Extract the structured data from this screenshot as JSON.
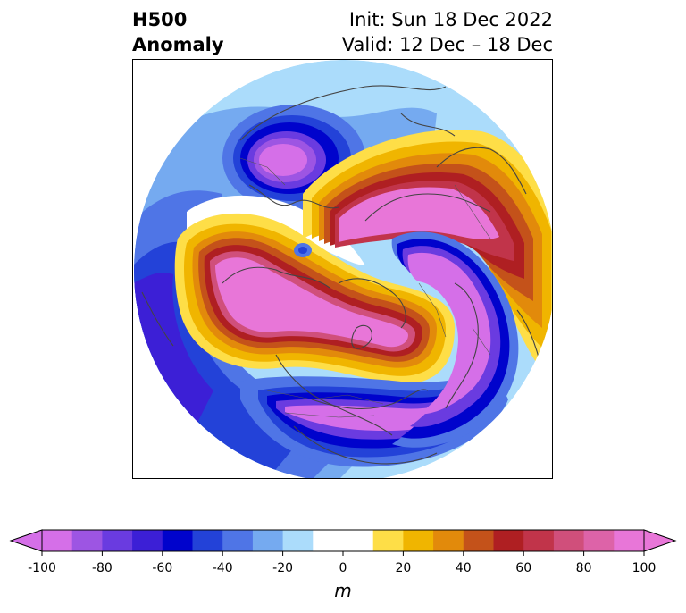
{
  "title": {
    "left_line1": "H500",
    "left_line2": "Anomaly",
    "right_line1": "Init: Sun 18 Dec 2022",
    "right_line2": "Valid: 12 Dec – 18 Dec"
  },
  "colorbar": {
    "units": "m",
    "ticks": [
      "-100",
      "-80",
      "-60",
      "-40",
      "-20",
      "0",
      "20",
      "40",
      "60",
      "80",
      "100"
    ],
    "levels": [
      -100,
      -90,
      -80,
      -70,
      -60,
      -50,
      -40,
      -30,
      -20,
      -10,
      10,
      20,
      30,
      40,
      50,
      60,
      70,
      80,
      90,
      100
    ],
    "colors": [
      "#d56fe8",
      "#9d55e3",
      "#6a3be0",
      "#3c1fd6",
      "#0003cc",
      "#2342d8",
      "#4f75e6",
      "#75aaf0",
      "#abdcfb",
      "#ffffff",
      "#ffffff",
      "#fede47",
      "#f0b500",
      "#e28a0b",
      "#c4521a",
      "#af1f22",
      "#c1344a",
      "#d04f7b",
      "#dd63a8",
      "#e876d8"
    ],
    "under_color": "#d56fe8",
    "over_color": "#e876d8"
  },
  "map": {
    "projection": "north polar stereographic",
    "features": [
      "coastlines",
      "country borders",
      "US state borders"
    ]
  }
}
